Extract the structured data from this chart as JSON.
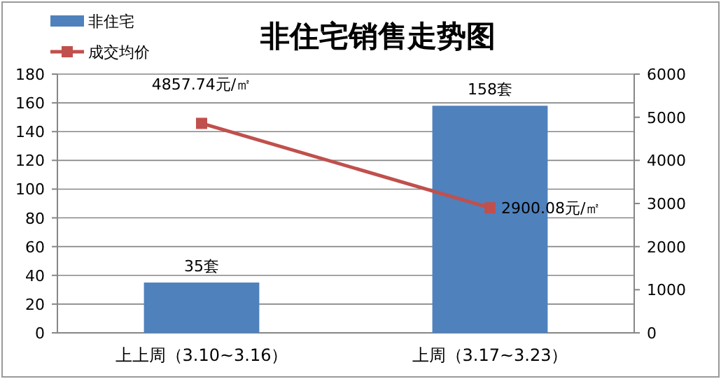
{
  "chart_data": {
    "type": "bar",
    "title": "非住宅销售走势图",
    "categories": [
      "上上周（3.10~3.16）",
      "上周（3.17~3.23）"
    ],
    "series": [
      {
        "name": "非住宅",
        "color": "#4f81bd",
        "values": [
          35,
          158
        ],
        "value_labels": [
          "35套",
          "158套"
        ]
      },
      {
        "name": "成交均价",
        "type": "line",
        "axis": "y2",
        "color": "#c0504d",
        "marker": "square",
        "values": [
          4857.74,
          2900.08
        ],
        "value_labels": [
          "4857.74元/㎡",
          "2900.08元/㎡"
        ]
      }
    ],
    "ylim": [
      0,
      180
    ],
    "yticks": [
      0,
      20,
      40,
      60,
      80,
      100,
      120,
      140,
      160,
      180
    ],
    "y2lim": [
      0,
      6000
    ],
    "y2ticks": [
      0,
      1000,
      2000,
      3000,
      4000,
      5000,
      6000
    ],
    "grid": "y",
    "legend": "top left"
  }
}
